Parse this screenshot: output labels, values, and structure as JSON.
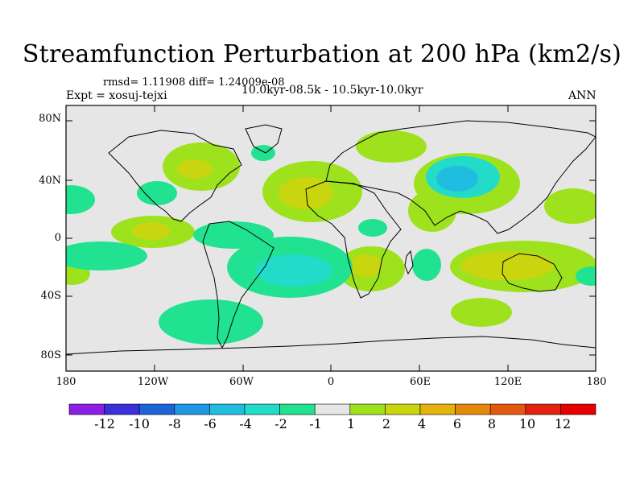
{
  "title": "Streamfunction Perturbation at 200 hPa (km2/s)",
  "stats_text": "rmsd= 1.11908 diff= 1.24009e-08",
  "expt_text": "Expt = xosuj-tejxi",
  "period_text": "10.0kyr-08.5k - 10.5kyr-10.0kyr",
  "season": "ANN",
  "lat_labels": [
    "80N",
    "40N",
    "0",
    "40S",
    "80S"
  ],
  "lon_labels": [
    "180",
    "120W",
    "60W",
    "0",
    "60E",
    "120E",
    "180"
  ],
  "colorbar": {
    "labels": [
      "-12",
      "-10",
      "-8",
      "-6",
      "-4",
      "-2",
      "-1",
      "1",
      "2",
      "4",
      "6",
      "8",
      "10",
      "12"
    ],
    "colors": [
      "#8c1ee6",
      "#3a2fd8",
      "#1f63d8",
      "#1f97e3",
      "#20bde0",
      "#22dcc9",
      "#21e290",
      "#e6e6e6",
      "#9ee21e",
      "#c9d50f",
      "#e3b20d",
      "#e38a0d",
      "#e3570f",
      "#e3220f",
      "#e60000"
    ]
  },
  "colors": {
    "background": "#e6e6e6",
    "positive_1": "#9ee21e",
    "positive_2": "#c9d50f",
    "negative_1": "#21e290",
    "negative_2": "#22dcc9",
    "negative_3": "#20bde0"
  }
}
